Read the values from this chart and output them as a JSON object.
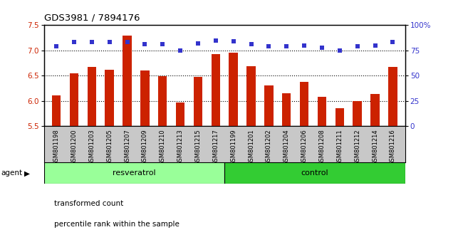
{
  "title": "GDS3981 / 7894176",
  "categories": [
    "GSM801198",
    "GSM801200",
    "GSM801203",
    "GSM801205",
    "GSM801207",
    "GSM801209",
    "GSM801210",
    "GSM801213",
    "GSM801215",
    "GSM801217",
    "GSM801199",
    "GSM801201",
    "GSM801202",
    "GSM801204",
    "GSM801206",
    "GSM801208",
    "GSM801211",
    "GSM801212",
    "GSM801214",
    "GSM801216"
  ],
  "bar_values": [
    6.11,
    6.55,
    6.67,
    6.61,
    7.3,
    6.6,
    6.49,
    5.96,
    6.48,
    6.93,
    6.95,
    6.68,
    6.31,
    6.15,
    6.37,
    6.08,
    5.85,
    6.0,
    6.14,
    6.67
  ],
  "percentile_values": [
    79,
    83,
    83,
    83,
    83,
    81,
    81,
    75,
    82,
    85,
    84,
    81,
    79,
    79,
    80,
    78,
    75,
    79,
    80,
    83
  ],
  "bar_color": "#cc2200",
  "percentile_color": "#3333cc",
  "ylim_left": [
    5.5,
    7.5
  ],
  "ylim_right": [
    0,
    100
  ],
  "yticks_left": [
    5.5,
    6.0,
    6.5,
    7.0,
    7.5
  ],
  "yticks_right": [
    0,
    25,
    50,
    75,
    100
  ],
  "ytick_labels_right": [
    "0",
    "25",
    "50",
    "75",
    "100%"
  ],
  "gridlines": [
    6.0,
    6.5,
    7.0
  ],
  "resveratrol_count": 10,
  "control_count": 10,
  "agent_label": "agent",
  "resveratrol_label": "resveratrol",
  "control_label": "control",
  "legend_bar_label": "transformed count",
  "legend_pct_label": "percentile rank within the sample",
  "resveratrol_color": "#99ff99",
  "control_color": "#33cc33",
  "tick_label_color_left": "#cc2200",
  "tick_label_color_right": "#3333cc",
  "xtick_bg_color": "#c8c8c8"
}
